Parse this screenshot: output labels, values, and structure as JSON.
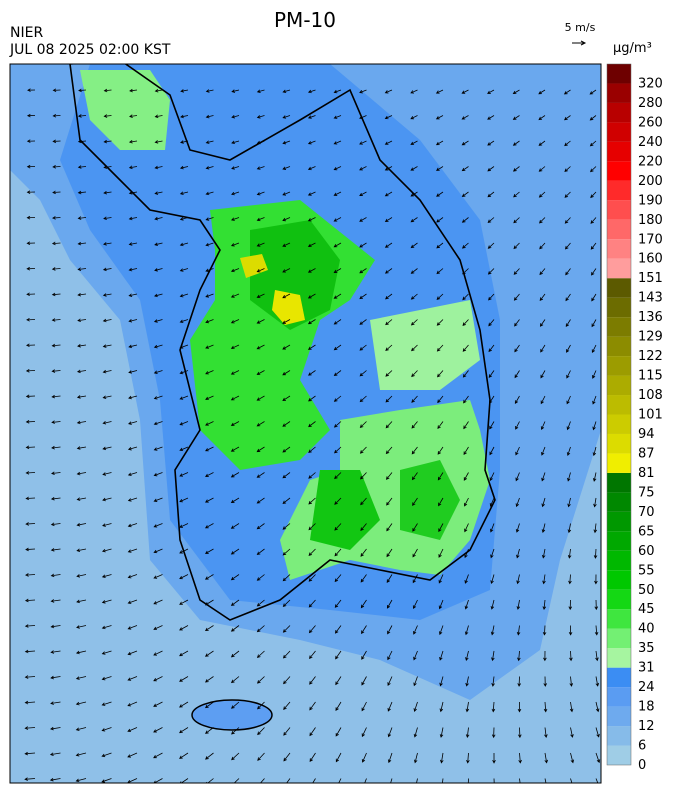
{
  "header": {
    "title": "PM-10",
    "agency": "NIER",
    "datetime": "JUL 08 2025 02:00 KST",
    "wind_scale": "5 m/s",
    "unit": "μg/m³"
  },
  "colorbar": {
    "levels": [
      0,
      6,
      12,
      18,
      24,
      31,
      35,
      40,
      45,
      50,
      55,
      60,
      65,
      70,
      75,
      81,
      87,
      94,
      101,
      108,
      115,
      122,
      129,
      136,
      143,
      151,
      160,
      170,
      180,
      190,
      200,
      220,
      240,
      260,
      280,
      320
    ],
    "colors": [
      "#9fcde6",
      "#86bbe9",
      "#6eaaee",
      "#5a9cf2",
      "#3b8df3",
      "#a6f5a0",
      "#73f073",
      "#3fe63f",
      "#14d814",
      "#00c800",
      "#00b800",
      "#00a800",
      "#009800",
      "#008800",
      "#007600",
      "#f0ee00",
      "#dcdc00",
      "#cccc00",
      "#bcbc00",
      "#acac00",
      "#9c9c00",
      "#8c8c00",
      "#7c7c00",
      "#6c6c00",
      "#5c5a00",
      "#ff9d9d",
      "#ff8282",
      "#ff6868",
      "#ff4e4e",
      "#ff2a2a",
      "#ff0000",
      "#e60000",
      "#d00000",
      "#b80000",
      "#9a0000",
      "#6e0000"
    ]
  }
}
